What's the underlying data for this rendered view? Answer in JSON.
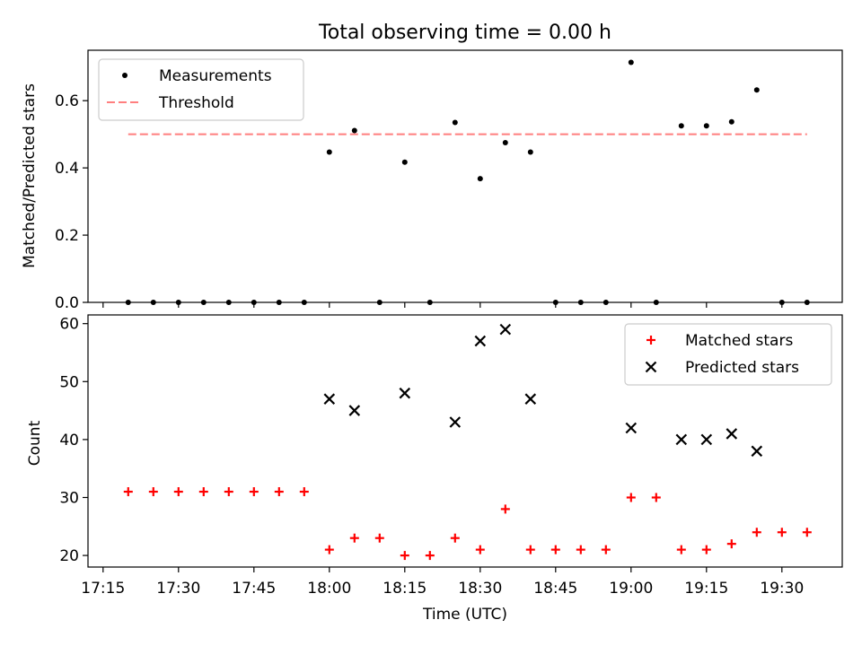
{
  "title": "Total observing time = 0.00 h",
  "x_axis": {
    "label": "Time (UTC)",
    "range": [
      "17:12",
      "19:42"
    ],
    "ticks": [
      "17:15",
      "17:30",
      "17:45",
      "18:00",
      "18:15",
      "18:30",
      "18:45",
      "19:00",
      "19:15",
      "19:30"
    ]
  },
  "chart_data": [
    {
      "type": "scatter",
      "panel": "top",
      "ylabel": "Matched/Predicted stars",
      "ylim": [
        0,
        0.75
      ],
      "yticks": [
        "0.0",
        "0.2",
        "0.4",
        "0.6"
      ],
      "legend": {
        "placement": "top-left"
      },
      "series": [
        {
          "name": "Measurements",
          "marker": "dot",
          "color": "#000000",
          "points": [
            [
              "17:20",
              0.0
            ],
            [
              "17:25",
              0.0
            ],
            [
              "17:30",
              0.0
            ],
            [
              "17:35",
              0.0
            ],
            [
              "17:40",
              0.0
            ],
            [
              "17:45",
              0.0
            ],
            [
              "17:50",
              0.0
            ],
            [
              "17:55",
              0.0
            ],
            [
              "18:00",
              0.447
            ],
            [
              "18:05",
              0.511
            ],
            [
              "18:10",
              0.0
            ],
            [
              "18:15",
              0.417
            ],
            [
              "18:20",
              0.0
            ],
            [
              "18:25",
              0.535
            ],
            [
              "18:30",
              0.368
            ],
            [
              "18:35",
              0.475
            ],
            [
              "18:40",
              0.447
            ],
            [
              "18:45",
              0.0
            ],
            [
              "18:50",
              0.0
            ],
            [
              "18:55",
              0.0
            ],
            [
              "19:00",
              0.714
            ],
            [
              "19:05",
              0.0
            ],
            [
              "19:10",
              0.525
            ],
            [
              "19:15",
              0.525
            ],
            [
              "19:20",
              0.537
            ],
            [
              "19:25",
              0.632
            ],
            [
              "19:30",
              0.0
            ],
            [
              "19:35",
              0.0
            ]
          ]
        },
        {
          "name": "Threshold",
          "marker": "dashed-line",
          "color": "#ff7f7f",
          "points": [
            [
              "17:20",
              0.5
            ],
            [
              "19:35",
              0.5
            ]
          ]
        }
      ]
    },
    {
      "type": "scatter",
      "panel": "bottom",
      "ylabel": "Count",
      "ylim": [
        18,
        61.5
      ],
      "yticks": [
        "20",
        "30",
        "40",
        "50",
        "60"
      ],
      "legend": {
        "placement": "top-right"
      },
      "series": [
        {
          "name": "Matched stars",
          "marker": "plus",
          "color": "#ff0000",
          "points": [
            [
              "17:20",
              31
            ],
            [
              "17:25",
              31
            ],
            [
              "17:30",
              31
            ],
            [
              "17:35",
              31
            ],
            [
              "17:40",
              31
            ],
            [
              "17:45",
              31
            ],
            [
              "17:50",
              31
            ],
            [
              "17:55",
              31
            ],
            [
              "18:00",
              21
            ],
            [
              "18:05",
              23
            ],
            [
              "18:10",
              23
            ],
            [
              "18:15",
              20
            ],
            [
              "18:20",
              20
            ],
            [
              "18:25",
              23
            ],
            [
              "18:30",
              21
            ],
            [
              "18:35",
              28
            ],
            [
              "18:40",
              21
            ],
            [
              "18:45",
              21
            ],
            [
              "18:50",
              21
            ],
            [
              "18:55",
              21
            ],
            [
              "19:00",
              30
            ],
            [
              "19:05",
              30
            ],
            [
              "19:10",
              21
            ],
            [
              "19:15",
              21
            ],
            [
              "19:20",
              22
            ],
            [
              "19:25",
              24
            ],
            [
              "19:30",
              24
            ],
            [
              "19:35",
              24
            ]
          ]
        },
        {
          "name": "Predicted stars",
          "marker": "x",
          "color": "#000000",
          "points": [
            [
              "18:00",
              47
            ],
            [
              "18:05",
              45
            ],
            [
              "18:15",
              48
            ],
            [
              "18:25",
              43
            ],
            [
              "18:30",
              57
            ],
            [
              "18:35",
              59
            ],
            [
              "18:40",
              47
            ],
            [
              "19:00",
              42
            ],
            [
              "19:10",
              40
            ],
            [
              "19:15",
              40
            ],
            [
              "19:20",
              41
            ],
            [
              "19:25",
              38
            ]
          ]
        }
      ]
    }
  ]
}
